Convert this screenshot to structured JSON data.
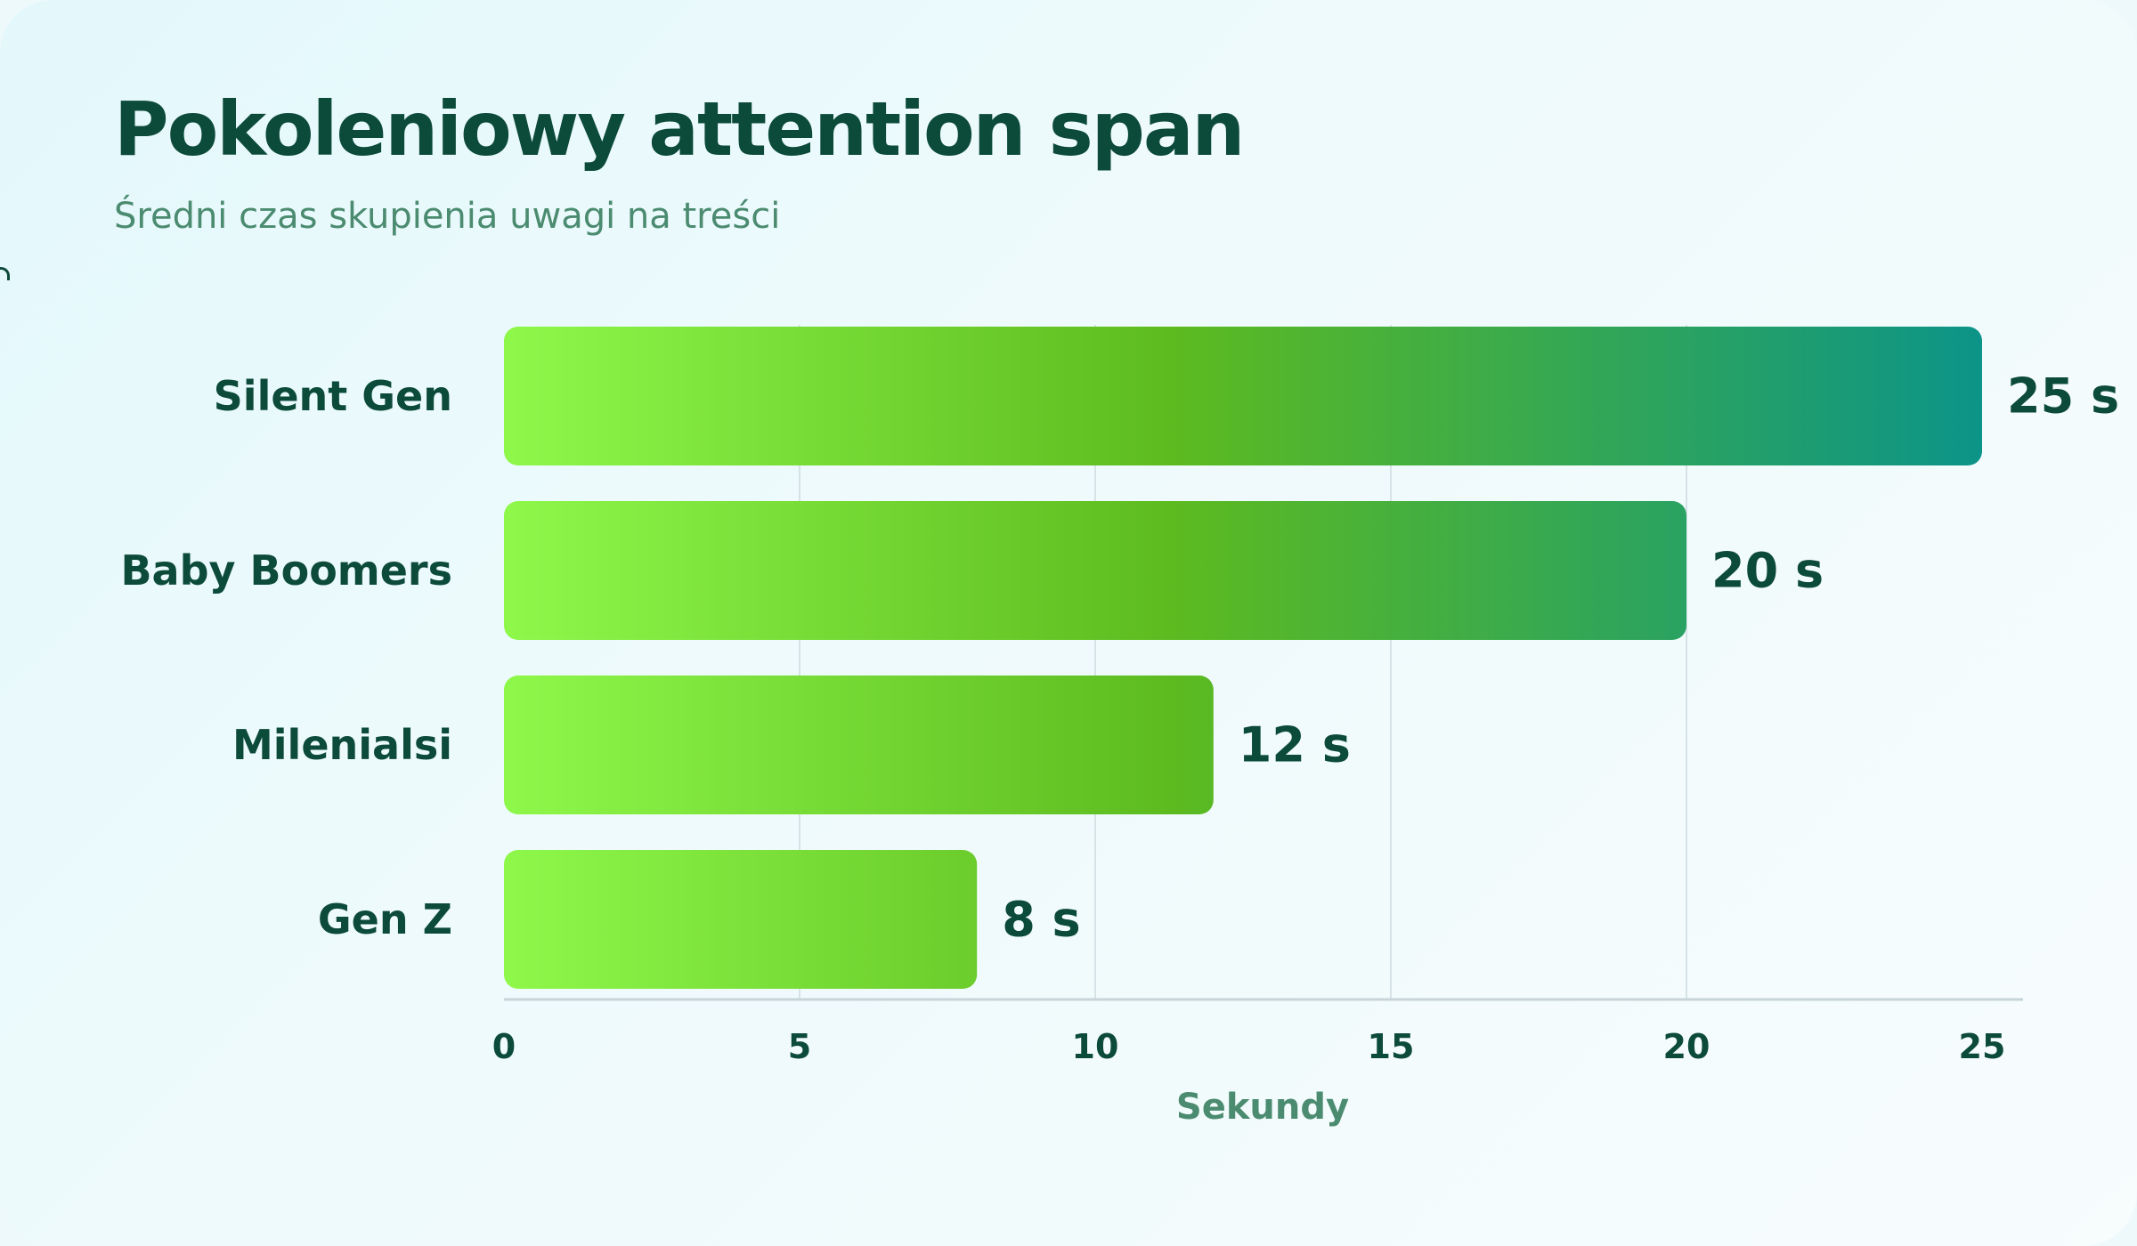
{
  "title": "Pokoleniowy attention span",
  "subtitle": "Średni czas skupienia uwagi na treści",
  "chart_data": {
    "type": "bar",
    "orientation": "horizontal",
    "title": "Pokoleniowy attention span",
    "subtitle": "Średni czas skupienia uwagi na treści",
    "categories": [
      "Silent Gen",
      "Baby Boomers",
      "Milenialsi",
      "Gen Z"
    ],
    "values": [
      25,
      20,
      12,
      8
    ],
    "value_labels": [
      "25 s",
      "20 s",
      "12 s",
      "8 s"
    ],
    "xlabel": "Sekundy",
    "ylabel": "",
    "xlim": [
      0,
      25
    ],
    "xticks": [
      0,
      5,
      10,
      15,
      20,
      25
    ],
    "xtick_labels": [
      "0",
      "5",
      "10",
      "15",
      "20",
      "25"
    ],
    "grid": "vertical",
    "legend": "none",
    "colors": {
      "bar_start": "#8ef84a",
      "bar_mid": "#5dbb1f",
      "bar_end": "#0c9488",
      "text_dark": "#0c4a3a",
      "text_muted": "#4b8b70",
      "grid": "#d6e3e6",
      "axis": "#c7d4d8"
    }
  }
}
